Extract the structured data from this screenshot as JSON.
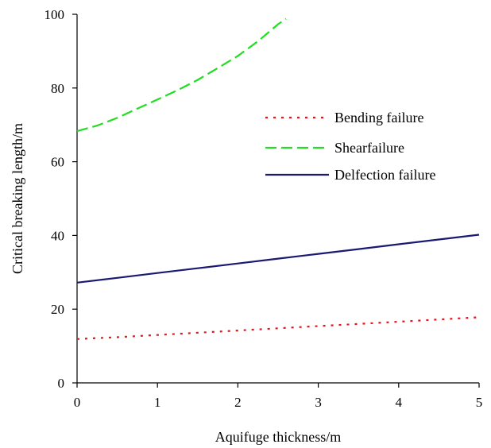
{
  "chart_data": {
    "type": "line",
    "title": "",
    "xlabel": "Aquifuge thickness/m",
    "ylabel": "Critical breaking length/m",
    "xlim": [
      0,
      5
    ],
    "ylim": [
      0,
      100
    ],
    "x_ticks": [
      0,
      1,
      2,
      3,
      4,
      5
    ],
    "y_ticks": [
      0,
      20,
      40,
      60,
      80,
      100
    ],
    "x_tick_labels": [
      "0",
      "1",
      "2",
      "3",
      "4",
      "5"
    ],
    "y_tick_labels": [
      "0",
      "20",
      "40",
      "60",
      "80",
      "100"
    ],
    "grid": false,
    "legend_position": "right-center",
    "series": [
      {
        "name": "Bending failure",
        "color": "#e8141a",
        "dash": "dotted",
        "x": [
          0,
          0.5,
          1,
          1.5,
          2,
          2.5,
          3,
          3.5,
          4,
          4.5,
          5
        ],
        "y": [
          11.9,
          12.4,
          13.0,
          13.6,
          14.2,
          14.8,
          15.4,
          16.0,
          16.6,
          17.2,
          17.8
        ]
      },
      {
        "name": "Shearfailure",
        "color": "#22dd22",
        "dash": "dashed",
        "x": [
          0,
          0.25,
          0.5,
          0.75,
          1,
          1.25,
          1.5,
          1.75,
          2,
          2.25,
          2.5,
          2.6
        ],
        "y": [
          68.3,
          69.8,
          71.9,
          74.4,
          76.9,
          79.4,
          82.2,
          85.4,
          88.7,
          92.7,
          97.3,
          98.8
        ]
      },
      {
        "name": "Delfection failure",
        "color": "#1a1a73",
        "dash": "solid",
        "x": [
          0,
          0.5,
          1,
          1.5,
          2,
          2.5,
          3,
          3.5,
          4,
          4.5,
          5
        ],
        "y": [
          27.2,
          28.5,
          29.8,
          31.1,
          32.4,
          33.7,
          35.0,
          36.3,
          37.6,
          38.9,
          40.2
        ]
      }
    ]
  }
}
